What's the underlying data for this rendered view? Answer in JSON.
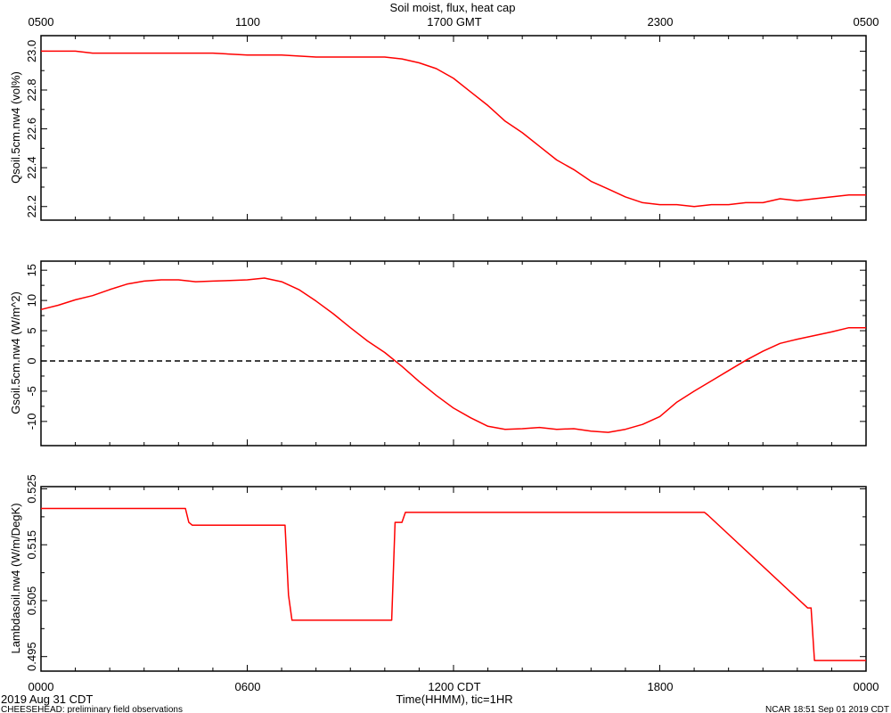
{
  "title": "Soil moist, flux, heat cap",
  "top_axis": {
    "ticks": [
      "0500",
      "1100",
      "1700 GMT",
      "2300",
      "0500"
    ]
  },
  "bottom_axis": {
    "ticks": [
      "0000",
      "0600",
      "1200 CDT",
      "1800",
      "0000"
    ],
    "xlabel": "Time(HHMM), tic=1HR",
    "start_date": "2019 Aug 31 CDT"
  },
  "footer": {
    "left": "CHEESEHEAD: preliminary field observations",
    "right": "NCAR 18:51 Sep 01 2019 CDT"
  },
  "colors": {
    "series": "#ff0000",
    "axes": "#000000",
    "zero_line": "#000000"
  },
  "chart_data": [
    {
      "type": "line",
      "ylabel": "Qsoil.5cm.nw4 (vol%)",
      "ylim": [
        22.13,
        23.08
      ],
      "yticks": [
        22.2,
        22.4,
        22.6,
        22.8,
        23.0
      ],
      "ytick_labels": [
        "22.2",
        "22.4",
        "22.6",
        "22.8",
        "23.0"
      ],
      "xlim": [
        0,
        24
      ],
      "x": [
        0,
        1,
        1.5,
        2,
        3,
        4,
        5,
        6,
        7,
        8,
        9,
        10,
        10.5,
        11,
        11.5,
        12,
        12.5,
        13,
        13.5,
        14,
        14.5,
        15,
        15.5,
        16,
        16.5,
        17,
        17.5,
        18,
        18.5,
        19,
        19.5,
        20,
        20.5,
        21,
        21.5,
        22,
        22.5,
        23,
        23.5,
        24
      ],
      "y": [
        23.0,
        23.0,
        22.99,
        22.99,
        22.99,
        22.99,
        22.99,
        22.98,
        22.98,
        22.97,
        22.97,
        22.97,
        22.96,
        22.94,
        22.91,
        22.86,
        22.79,
        22.72,
        22.64,
        22.58,
        22.51,
        22.44,
        22.39,
        22.33,
        22.29,
        22.25,
        22.22,
        22.21,
        22.21,
        22.2,
        22.21,
        22.21,
        22.22,
        22.22,
        22.24,
        22.23,
        22.24,
        22.25,
        22.26,
        22.26
      ]
    },
    {
      "type": "line",
      "ylabel": "Gsoil.5cm.nw4 (W/m^2)",
      "ylim": [
        -14,
        16.5
      ],
      "yticks": [
        -10,
        -5,
        0,
        5,
        10,
        15
      ],
      "ytick_labels": [
        "-10",
        "-5",
        "0",
        "5",
        "10",
        "15"
      ],
      "zero_line": true,
      "xlim": [
        0,
        24
      ],
      "x": [
        0,
        0.5,
        1,
        1.5,
        2,
        2.5,
        3,
        3.5,
        4,
        4.5,
        5,
        5.5,
        6,
        6.5,
        7,
        7.5,
        8,
        8.5,
        9,
        9.5,
        10,
        10.5,
        11,
        11.5,
        12,
        12.5,
        13,
        13.5,
        14,
        14.5,
        15,
        15.5,
        16,
        16.5,
        17,
        17.5,
        18,
        18.5,
        19,
        19.5,
        20,
        20.5,
        21,
        21.5,
        22,
        22.5,
        23,
        23.5,
        24
      ],
      "y": [
        8.5,
        9.2,
        10.1,
        10.8,
        11.8,
        12.7,
        13.2,
        13.4,
        13.4,
        13.1,
        13.2,
        13.3,
        13.4,
        13.7,
        13.1,
        11.8,
        9.9,
        7.8,
        5.5,
        3.3,
        1.4,
        -0.9,
        -3.4,
        -5.7,
        -7.8,
        -9.4,
        -10.8,
        -11.3,
        -11.2,
        -11.0,
        -11.3,
        -11.2,
        -11.6,
        -11.8,
        -11.3,
        -10.5,
        -9.2,
        -6.8,
        -5.0,
        -3.3,
        -1.6,
        0.1,
        1.6,
        2.9,
        3.6,
        4.2,
        4.8,
        5.5,
        5.5
      ]
    },
    {
      "type": "line",
      "ylabel": "Lambdasoil.nw4 (W/m/DegK)",
      "ylim": [
        0.4924,
        0.5254
      ],
      "yticks": [
        0.495,
        0.505,
        0.515,
        0.525
      ],
      "ytick_labels": [
        "0.495",
        "0.505",
        "0.515",
        "0.525"
      ],
      "xlim": [
        0,
        24
      ],
      "x": [
        0,
        4.2,
        4.3,
        4.4,
        7.1,
        7.2,
        7.3,
        10.2,
        10.3,
        10.5,
        10.6,
        19.3,
        19.4,
        22.3,
        22.4,
        22.5,
        24
      ],
      "y": [
        0.5215,
        0.5215,
        0.519,
        0.5185,
        0.5185,
        0.506,
        0.5015,
        0.5015,
        0.519,
        0.519,
        0.5208,
        0.5208,
        0.5203,
        0.5037,
        0.5037,
        0.4943,
        0.4943
      ]
    }
  ]
}
